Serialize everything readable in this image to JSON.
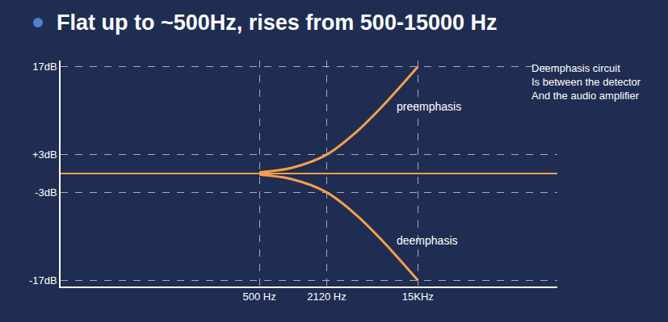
{
  "chart_data": {
    "type": "line",
    "title": "Flat up to ~500Hz, rises from 500-15000 Hz",
    "x": [
      500,
      1000,
      2120,
      4000,
      7000,
      10000,
      15000
    ],
    "series": [
      {
        "name": "preemphasis",
        "color": "#f5a04a",
        "values": [
          0.2,
          0.9,
          3,
          6.6,
          10.7,
          13.6,
          17
        ]
      },
      {
        "name": "deemphasis",
        "color": "#f5a04a",
        "values": [
          -0.2,
          -0.9,
          -3,
          -6.6,
          -10.7,
          -13.6,
          -17
        ]
      }
    ],
    "xlim": [
      7,
      300000
    ],
    "xticks": [
      {
        "value": 500,
        "label": "500 Hz"
      },
      {
        "value": 2120,
        "label": "2120 Hz"
      },
      {
        "value": 15000,
        "label": "15KHz"
      }
    ],
    "ylim": [
      -18,
      18
    ],
    "yticks": [
      {
        "value": -17,
        "label": "-17dB"
      },
      {
        "value": -3,
        "label": "-3dB"
      },
      {
        "value": 3,
        "label": "+3dB"
      },
      {
        "value": 17,
        "label": "17dB"
      }
    ],
    "log": "x",
    "grid": true,
    "notes": [
      "Deemphasis circuit",
      "Is between the detector",
      "And the audio amplifier"
    ]
  }
}
